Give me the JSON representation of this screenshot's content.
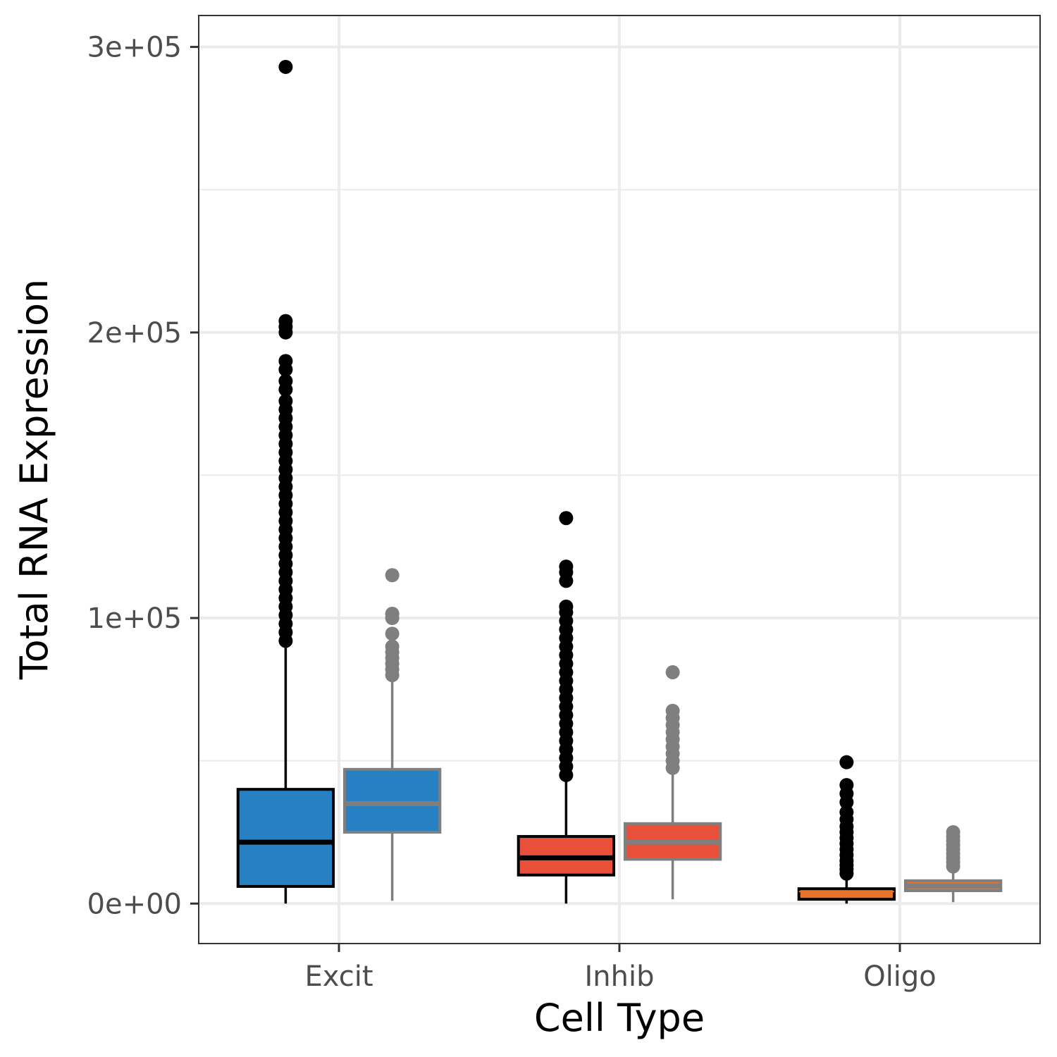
{
  "chart_data": {
    "type": "box",
    "xlabel": "Cell Type",
    "ylabel": "Total RNA Expression",
    "categories": [
      "Excit",
      "Inhib",
      "Oligo"
    ],
    "ylim": [
      -14000,
      311000
    ],
    "yticks": [
      0,
      100000,
      200000,
      300000
    ],
    "ytick_labels": [
      "0e+00",
      "1e+05",
      "2e+05",
      "3e+05"
    ],
    "grid": true,
    "legend": "none",
    "colors": {
      "Excit": "#2680c2",
      "Inhib": "#e8503a",
      "Oligo": "#e8742a",
      "outline_primary": "#000000",
      "outline_secondary": "#7f7f7f"
    },
    "series": [
      {
        "outline": "#000000",
        "boxes": [
          {
            "category": "Excit",
            "lower_whisker": 0,
            "q1": 6000,
            "median": 21500,
            "q3": 40000,
            "upper_whisker": 91000,
            "outliers": [
              293000,
              204000,
              202000,
              200000,
              190000,
              187000,
              183000,
              180000,
              176000,
              173000,
              170000,
              167000,
              164000,
              161000,
              158000,
              155000,
              152000,
              149000,
              146000,
              143000,
              140000,
              137000,
              134000,
              131000,
              128000,
              125000,
              122000,
              119000,
              116000,
              113000,
              110000,
              107000,
              104000,
              101000,
              98000,
              95000,
              92000
            ]
          },
          {
            "category": "Inhib",
            "lower_whisker": 0,
            "q1": 10000,
            "median": 16000,
            "q3": 23500,
            "upper_whisker": 43000,
            "outliers": [
              135000,
              118000,
              116000,
              113000,
              104000,
              102000,
              99000,
              96000,
              93000,
              90000,
              87000,
              84000,
              81000,
              78000,
              75000,
              72000,
              69000,
              66000,
              63000,
              60000,
              57000,
              54000,
              51000,
              48000,
              45000
            ]
          },
          {
            "category": "Oligo",
            "lower_whisker": 0,
            "q1": 1500,
            "median": 4200,
            "q3": 5200,
            "upper_whisker": 9000,
            "outliers": [
              49500,
              41500,
              38500,
              35500,
              32000,
              29500,
              27000,
              25000,
              23000,
              21000,
              19000,
              17000,
              15000,
              13500,
              12000,
              10500
            ]
          }
        ]
      },
      {
        "outline": "#7f7f7f",
        "boxes": [
          {
            "category": "Excit",
            "lower_whisker": 1000,
            "q1": 25000,
            "median": 35000,
            "q3": 47000,
            "upper_whisker": 79000,
            "outliers": [
              115000,
              101500,
              100000,
              94500,
              90000,
              88000,
              86000,
              84000,
              82000,
              80000
            ]
          },
          {
            "category": "Inhib",
            "lower_whisker": 1500,
            "q1": 15500,
            "median": 21500,
            "q3": 28000,
            "upper_whisker": 46000,
            "outliers": [
              81000,
              67500,
              65000,
              62500,
              60000,
              57500,
              55000,
              52500,
              50000,
              47500
            ]
          },
          {
            "category": "Oligo",
            "lower_whisker": 500,
            "q1": 4500,
            "median": 6200,
            "q3": 8000,
            "upper_whisker": 12000,
            "outliers": [
              25000,
              23500,
              22000,
              20500,
              19000,
              17500,
              16000,
              14500,
              13000
            ]
          }
        ]
      }
    ]
  }
}
